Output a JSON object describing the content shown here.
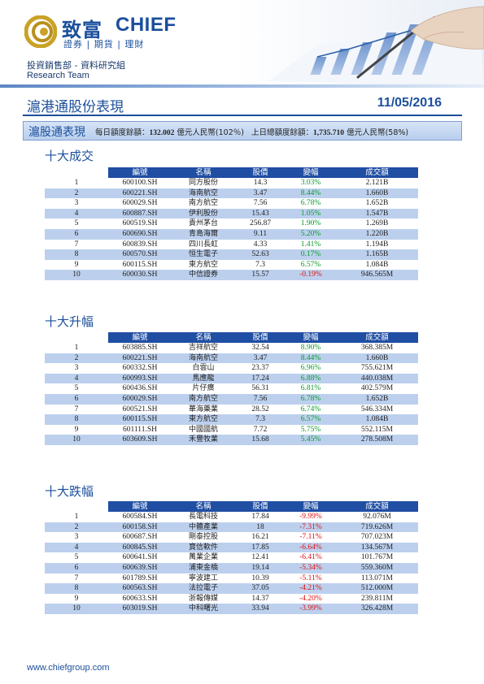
{
  "header": {
    "brand_cn": "致富",
    "brand_en": "CHIEF",
    "brand_sub": "證券 | 期貨 | 理財",
    "department": "投資銷售部 - 資料研究組",
    "team": "Research Team",
    "colors": {
      "brand_blue": "#1a4f9c",
      "gold": "#c9a227"
    }
  },
  "report": {
    "title": "滬港通股份表現",
    "date": "11/05/2016"
  },
  "summary": {
    "label": "滬股通表現",
    "daily_quota_label": "每日額度餘額：",
    "daily_quota_value": "132.002",
    "daily_quota_unit": " 億元人民幣(102％)",
    "total_quota_label": "上日總額度餘額：",
    "total_quota_value": "1,735.710",
    "total_quota_unit": " 億元人民幣(58%)"
  },
  "columns": [
    "編號",
    "名稱",
    "股價",
    "變幅",
    "成交額"
  ],
  "sections": [
    {
      "title": "十大成交",
      "rows": [
        {
          "rank": "1",
          "code": "600100.SH",
          "name": "同方股份",
          "price": "14.3",
          "change": "3.03%",
          "dir": "up",
          "turnover": "2.121B"
        },
        {
          "rank": "2",
          "code": "600221.SH",
          "name": "海南航空",
          "price": "3.47",
          "change": "8.44%",
          "dir": "up",
          "turnover": "1.660B"
        },
        {
          "rank": "3",
          "code": "600029.SH",
          "name": "南方航空",
          "price": "7.56",
          "change": "6.78%",
          "dir": "up",
          "turnover": "1.652B"
        },
        {
          "rank": "4",
          "code": "600887.SH",
          "name": "伊利股份",
          "price": "15.43",
          "change": "1.05%",
          "dir": "up",
          "turnover": "1.547B"
        },
        {
          "rank": "5",
          "code": "600519.SH",
          "name": "貴州茅台",
          "price": "256.87",
          "change": "1.90%",
          "dir": "up",
          "turnover": "1.269B"
        },
        {
          "rank": "6",
          "code": "600690.SH",
          "name": "青島海爾",
          "price": "9.11",
          "change": "5.20%",
          "dir": "up",
          "turnover": "1.220B"
        },
        {
          "rank": "7",
          "code": "600839.SH",
          "name": "四川長虹",
          "price": "4.33",
          "change": "1.41%",
          "dir": "up",
          "turnover": "1.194B"
        },
        {
          "rank": "8",
          "code": "600570.SH",
          "name": "恒生電子",
          "price": "52.63",
          "change": "0.17%",
          "dir": "up",
          "turnover": "1.165B"
        },
        {
          "rank": "9",
          "code": "600115.SH",
          "name": "東方航空",
          "price": "7.3",
          "change": "6.57%",
          "dir": "up",
          "turnover": "1.084B"
        },
        {
          "rank": "10",
          "code": "600030.SH",
          "name": "中信證券",
          "price": "15.57",
          "change": "-0.19%",
          "dir": "down",
          "turnover": "946.565M"
        }
      ]
    },
    {
      "title": "十大升幅",
      "rows": [
        {
          "rank": "1",
          "code": "603885.SH",
          "name": "吉祥航空",
          "price": "32.54",
          "change": "8.90%",
          "dir": "up",
          "turnover": "368.385M"
        },
        {
          "rank": "2",
          "code": "600221.SH",
          "name": "海南航空",
          "price": "3.47",
          "change": "8.44%",
          "dir": "up",
          "turnover": "1.660B"
        },
        {
          "rank": "3",
          "code": "600332.SH",
          "name": "白雲山",
          "price": "23.37",
          "change": "6.96%",
          "dir": "up",
          "turnover": "755.621M"
        },
        {
          "rank": "4",
          "code": "600993.SH",
          "name": "馬應龍",
          "price": "17.24",
          "change": "6.88%",
          "dir": "up",
          "turnover": "440.038M"
        },
        {
          "rank": "5",
          "code": "600436.SH",
          "name": "片仔癀",
          "price": "56.31",
          "change": "6.81%",
          "dir": "up",
          "turnover": "402.579M"
        },
        {
          "rank": "6",
          "code": "600029.SH",
          "name": "南方航空",
          "price": "7.56",
          "change": "6.78%",
          "dir": "up",
          "turnover": "1.652B"
        },
        {
          "rank": "7",
          "code": "600521.SH",
          "name": "華海藥業",
          "price": "28.52",
          "change": "6.74%",
          "dir": "up",
          "turnover": "546.334M"
        },
        {
          "rank": "8",
          "code": "600115.SH",
          "name": "東方航空",
          "price": "7.3",
          "change": "6.57%",
          "dir": "up",
          "turnover": "1.084B"
        },
        {
          "rank": "9",
          "code": "601111.SH",
          "name": "中國國航",
          "price": "7.72",
          "change": "5.75%",
          "dir": "up",
          "turnover": "552.115M"
        },
        {
          "rank": "10",
          "code": "603609.SH",
          "name": "禾豐牧業",
          "price": "15.68",
          "change": "5.45%",
          "dir": "up",
          "turnover": "278.508M"
        }
      ]
    },
    {
      "title": "十大跌幅",
      "rows": [
        {
          "rank": "1",
          "code": "600584.SH",
          "name": "長電科技",
          "price": "17.84",
          "change": "-9.99%",
          "dir": "down",
          "turnover": "92.076M"
        },
        {
          "rank": "2",
          "code": "600158.SH",
          "name": "中體產業",
          "price": "18",
          "change": "-7.31%",
          "dir": "down",
          "turnover": "719.626M"
        },
        {
          "rank": "3",
          "code": "600687.SH",
          "name": "剛泰控股",
          "price": "16.21",
          "change": "-7.11%",
          "dir": "down",
          "turnover": "707.023M"
        },
        {
          "rank": "4",
          "code": "600845.SH",
          "name": "寶信軟件",
          "price": "17.85",
          "change": "-6.64%",
          "dir": "down",
          "turnover": "134.567M"
        },
        {
          "rank": "5",
          "code": "600641.SH",
          "name": "萬業企業",
          "price": "12.41",
          "change": "-6.41%",
          "dir": "down",
          "turnover": "101.767M"
        },
        {
          "rank": "6",
          "code": "600639.SH",
          "name": "浦東金橋",
          "price": "19.14",
          "change": "-5.34%",
          "dir": "down",
          "turnover": "559.360M"
        },
        {
          "rank": "7",
          "code": "601789.SH",
          "name": "寧波建工",
          "price": "10.39",
          "change": "-5.11%",
          "dir": "down",
          "turnover": "113.071M"
        },
        {
          "rank": "8",
          "code": "600563.SH",
          "name": "法拉電子",
          "price": "37.05",
          "change": "-4.21%",
          "dir": "down",
          "turnover": "512.000M"
        },
        {
          "rank": "9",
          "code": "600633.SH",
          "name": "浙報傳媒",
          "price": "14.37",
          "change": "-4.20%",
          "dir": "down",
          "turnover": "239.811M"
        },
        {
          "rank": "10",
          "code": "603019.SH",
          "name": "中科曙光",
          "price": "33.94",
          "change": "-3.99%",
          "dir": "down",
          "turnover": "326.428M"
        }
      ]
    }
  ],
  "footer": {
    "url": "www.chiefgroup.com"
  }
}
